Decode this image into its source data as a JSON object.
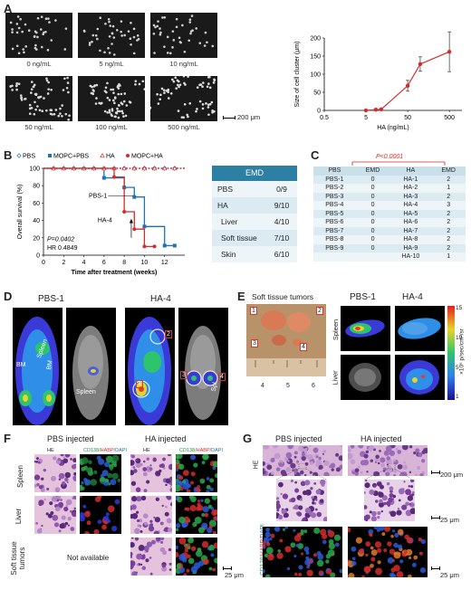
{
  "panels": {
    "a": "A",
    "b": "B",
    "c": "C",
    "d": "D",
    "e": "E",
    "f": "F",
    "g": "G"
  },
  "panelA": {
    "micro_labels": [
      "0 ng/mL",
      "5 ng/mL",
      "10 ng/mL",
      "50 ng/mL",
      "100 ng/mL",
      "500 ng/mL"
    ],
    "scalebar": "200 μm"
  },
  "chart_data": [
    {
      "type": "line",
      "xlabel": "HA (ng/mL)",
      "ylabel": "Size of cell cluster (μm)",
      "x_ticks": [
        "0.5",
        "5",
        "50",
        "500"
      ],
      "y_ticks": [
        "0",
        "50",
        "100",
        "150",
        "200"
      ],
      "ylim": [
        0,
        200
      ],
      "xscale": "log",
      "x": [
        0,
        5,
        10,
        50,
        100,
        500
      ],
      "values": [
        0,
        2,
        3,
        68,
        128,
        162
      ],
      "err": [
        0,
        0,
        0,
        15,
        20,
        55
      ],
      "color": "#d42b2b"
    },
    {
      "type": "line",
      "xlabel": "Time after treatment (weeks)",
      "ylabel": "Overall survival (%)",
      "x_ticks": [
        "0",
        "2",
        "4",
        "6",
        "8",
        "10",
        "12"
      ],
      "y_ticks": [
        "0",
        "20",
        "40",
        "60",
        "80",
        "100"
      ],
      "xlim": [
        0,
        14
      ],
      "ylim": [
        0,
        100
      ],
      "series": [
        {
          "name": "PBS",
          "color": "#1e73b5",
          "x": [
            0,
            14
          ],
          "y": [
            100,
            100
          ]
        },
        {
          "name": "MOPC+PBS",
          "color": "#1e73b5",
          "x": [
            0,
            6,
            6,
            8,
            8,
            9,
            9,
            10,
            10,
            12,
            12,
            13
          ],
          "y": [
            100,
            100,
            89,
            89,
            78,
            78,
            67,
            67,
            33,
            33,
            11,
            11
          ]
        },
        {
          "name": "HA",
          "color": "#d42b2b",
          "x": [
            0,
            14
          ],
          "y": [
            100,
            100
          ]
        },
        {
          "name": "MOPC+HA",
          "color": "#d42b2b",
          "x": [
            0,
            7,
            7,
            8,
            8,
            9,
            9,
            10,
            10,
            11
          ],
          "y": [
            100,
            100,
            90,
            90,
            50,
            50,
            30,
            30,
            10,
            10
          ]
        }
      ],
      "legend": [
        "PBS",
        "MOPC+PBS",
        "HA",
        "MOPC+HA"
      ],
      "annotations": {
        "pbs1": "PBS-1",
        "ha4": "HA-4",
        "p": "P=0.0402",
        "hr": "HR 0.4849"
      }
    }
  ],
  "emd_table": {
    "header": "EMD",
    "rows": [
      [
        "PBS",
        "0/9"
      ],
      [
        "HA",
        "9/10"
      ],
      [
        "Liver",
        "4/10"
      ],
      [
        "Soft tissue",
        "7/10"
      ],
      [
        "Skin",
        "6/10"
      ]
    ]
  },
  "panelC": {
    "pval": "P<0.0001",
    "headers": [
      "PBS",
      "EMD",
      "HA",
      "EMD"
    ],
    "rows": [
      [
        "PBS-1",
        "0",
        "HA-1",
        "2"
      ],
      [
        "PBS-2",
        "0",
        "HA-2",
        "1"
      ],
      [
        "PBS-3",
        "0",
        "HA-3",
        "2"
      ],
      [
        "PBS-4",
        "0",
        "HA-4",
        "3"
      ],
      [
        "PBS-5",
        "0",
        "HA-5",
        "2"
      ],
      [
        "PBS-6",
        "0",
        "HA-6",
        "2"
      ],
      [
        "PBS-7",
        "0",
        "HA-7",
        "2"
      ],
      [
        "PBS-8",
        "0",
        "HA-8",
        "2"
      ],
      [
        "PBS-9",
        "0",
        "HA-9",
        "2"
      ],
      [
        "",
        "",
        "HA-10",
        "1"
      ]
    ]
  },
  "panelD": {
    "t1": "PBS-1",
    "t2": "HA-4",
    "spleen": "Spleen",
    "bm": "BM",
    "spl": "Spl",
    "n1": "1",
    "n2": "2",
    "n3": "3",
    "n4": "4"
  },
  "panelE": {
    "title": "Soft tissue tumors",
    "pbs": "PBS-1",
    "ha": "HA-4",
    "n1": "1",
    "n2": "2",
    "n3": "3",
    "n4": "4",
    "ruler": [
      "4",
      "5",
      "6"
    ],
    "spleen": "Spleen",
    "liver": "Liver",
    "cbar_ticks": [
      "15",
      "10",
      "5",
      "1"
    ],
    "cbar_label": "×10⁵ p/sec/cm²/sr"
  },
  "panelF": {
    "pbs": "PBS injected",
    "ha": "HA injected",
    "he": "HE",
    "stain_cd": "CD138/",
    "stain_habp": "HABP/",
    "stain_dapi": "DAPI",
    "rows": [
      "Spleen",
      "Liver",
      "Soft tissue tumors"
    ],
    "na": "Not available",
    "scale": "25 μm"
  },
  "panelG": {
    "pbs": "PBS injected",
    "ha": "HA injected",
    "he": "HE",
    "stain_cd": "CD138/",
    "stain_habp": "HABP/",
    "stain_dapi": "DAPI",
    "s1": "200 μm",
    "s2": "25 μm",
    "s3": "25 μm"
  },
  "colors": {
    "red": "#d42b2b",
    "blue": "#1e73b5",
    "teal": "#2b7ea3",
    "tableHead": "#2d7fa3"
  }
}
